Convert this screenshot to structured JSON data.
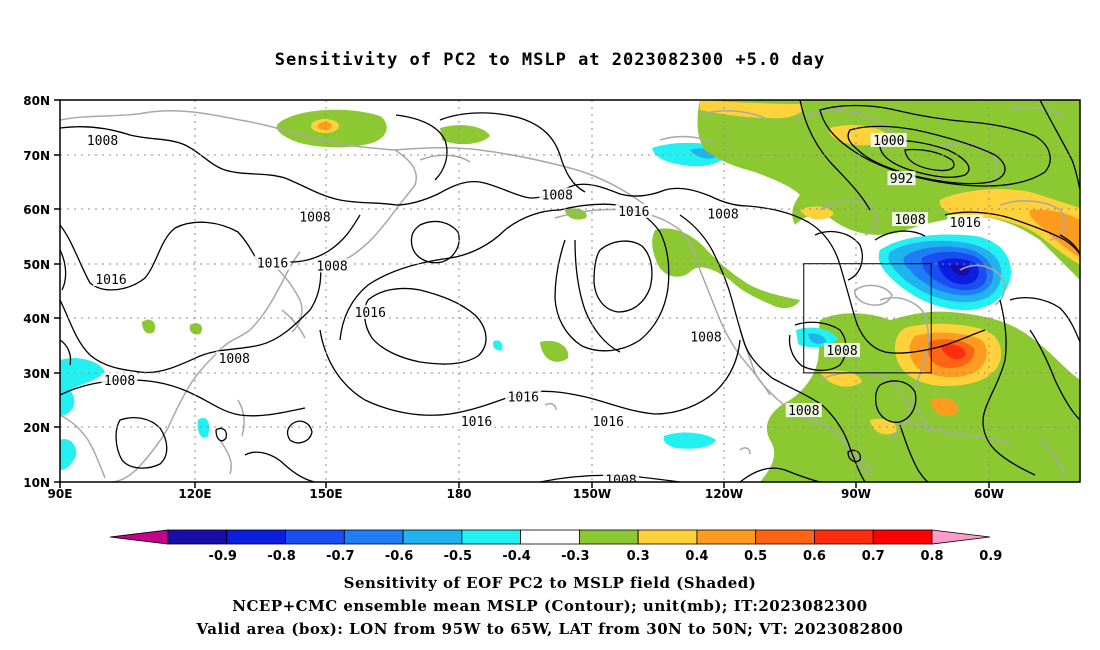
{
  "title": "Sensitivity of PC2 to MSLP at 2023082300 +5.0 day",
  "lat_labels": [
    "80N",
    "70N",
    "60N",
    "50N",
    "40N",
    "30N",
    "20N",
    "10N"
  ],
  "lon_labels": [
    "90E",
    "120E",
    "150E",
    "180",
    "150W",
    "120W",
    "90W",
    "60W"
  ],
  "contour_labels": [
    {
      "text": "1008",
      "lon": 100,
      "lat": 72.5
    },
    {
      "text": "1008",
      "lon": 150,
      "lat": 58.5
    },
    {
      "text": "1008",
      "lon": 154,
      "lat": 49.5
    },
    {
      "text": "1016",
      "lon": 140,
      "lat": 50
    },
    {
      "text": "1016",
      "lon": 102,
      "lat": 47
    },
    {
      "text": "1016",
      "lon": 163,
      "lat": 41
    },
    {
      "text": "1008",
      "lon": 131,
      "lat": 32.5
    },
    {
      "text": "1008",
      "lon": 104,
      "lat": 28.5
    },
    {
      "text": "1008",
      "lon": -153,
      "lat": 62.5
    },
    {
      "text": "1016",
      "lon": -135,
      "lat": 59.5
    },
    {
      "text": "1008",
      "lon": -114,
      "lat": 59
    },
    {
      "text": "1016",
      "lon": -161,
      "lat": 25.5
    },
    {
      "text": "1016",
      "lon": -172,
      "lat": 21
    },
    {
      "text": "1016",
      "lon": -141,
      "lat": 21
    },
    {
      "text": "1008",
      "lon": -118,
      "lat": 36.5
    },
    {
      "text": "1008",
      "lon": -86,
      "lat": 34
    },
    {
      "text": "1008",
      "lon": -95,
      "lat": 23
    },
    {
      "text": "1000",
      "lon": -75,
      "lat": 72.5
    },
    {
      "text": "992",
      "lon": -72,
      "lat": 65.5
    },
    {
      "text": "1008",
      "lon": -70,
      "lat": 58
    },
    {
      "text": "1016",
      "lon": -57,
      "lat": 57.5
    },
    {
      "text": "1008",
      "lon": -138,
      "lat": 10.3
    }
  ],
  "valid_box": {
    "lon_min": -95,
    "lon_max": -65,
    "lat_min": 30,
    "lat_max": 50
  },
  "colorbar": {
    "labels": [
      "-0.9",
      "-0.8",
      "-0.7",
      "-0.6",
      "-0.5",
      "-0.4",
      "-0.3",
      "0.3",
      "0.4",
      "0.5",
      "0.6",
      "0.7",
      "0.8",
      "0.9"
    ],
    "colors": [
      "#c4008c",
      "#1a0ca6",
      "#0b1ee0",
      "#1a4ef0",
      "#1f7ef5",
      "#1fb4f0",
      "#23f0f0",
      "#ffffff",
      "#8cc832",
      "#ffd23c",
      "#ff9b1e",
      "#ff6414",
      "#ff2d0f",
      "#ff0000",
      "#ff9bc8"
    ]
  },
  "captions": {
    "line1": "Sensitivity of EOF PC2 to MSLP field (Shaded)",
    "line2": "NCEP+CMC ensemble mean MSLP (Contour); unit(mb); IT:2023082300",
    "line3": "Valid area (box): LON from 95W to 65W, LAT from 30N to 50N; VT: 2023082800"
  }
}
